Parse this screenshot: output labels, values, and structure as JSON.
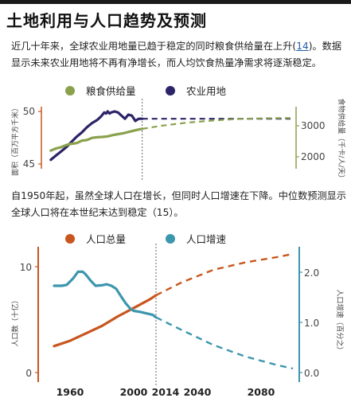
{
  "title": "土地利用与人口趋势及预测",
  "para1": {
    "text_before": "近几十年来，全球农业用地量已趋于稳定的同时粮食供给量在上升(",
    "ref": "14",
    "text_after": ")。数据显示未来农业用地将不再有净增长，而人均饮食热量净需求将逐渐稳定。"
  },
  "para2": {
    "text": "自1950年起，虽然全球人口在增长，但同时人口增速在下降。中位数预测显示全球人口将在本世纪末达到稳定（15）。"
  },
  "colors": {
    "food": "#8aa14c",
    "land": "#2c2468",
    "pop": "#c8561e",
    "rate": "#3c96ad",
    "axis_left": "#c8561e",
    "axis_right": "#3c96ad"
  },
  "chart_data": [
    {
      "type": "line",
      "legend": [
        {
          "name": "粮食供给量",
          "color": "#8aa14c"
        },
        {
          "name": "农业用地",
          "color": "#2c2468"
        }
      ],
      "ylabel_left": "面积（百万平方千米）",
      "ylabel_right": "食物供给量（千卡/人/天）",
      "left_ticks": [
        "50",
        "45"
      ],
      "right_ticks": [
        "3000",
        "2000"
      ],
      "left_range": [
        45,
        50
      ],
      "right_range": [
        1700,
        3400
      ],
      "divider_year": 2014,
      "series": [
        {
          "name": "农业用地",
          "axis": "left",
          "historical": {
            "x": [
              1961,
              1964,
              1967,
              1970,
              1973,
              1976,
              1979,
              1982,
              1985,
              1988,
              1990,
              1991,
              1992,
              1993,
              1994,
              1995,
              1996,
              1998,
              2000,
              2002,
              2004,
              2006,
              2008,
              2010,
              2012,
              2014
            ],
            "y": [
              45.4,
              45.8,
              46.2,
              46.6,
              47.1,
              47.6,
              48.0,
              48.5,
              48.9,
              49.2,
              49.5,
              49.7,
              49.9,
              49.8,
              50.0,
              49.8,
              49.9,
              50.0,
              49.9,
              49.6,
              49.3,
              49.7,
              49.6,
              49.1,
              49.3,
              49.3
            ]
          },
          "projection": {
            "x": [
              2014,
              2100
            ],
            "y": [
              49.3,
              49.3
            ]
          }
        },
        {
          "name": "粮食供给量",
          "axis": "right",
          "historical": {
            "x": [
              1961,
              1964,
              1967,
              1970,
              1973,
              1976,
              1979,
              1982,
              1985,
              1988,
              1991,
              1994,
              1997,
              2000,
              2003,
              2006,
              2009,
              2012,
              2014
            ],
            "y": [
              2200,
              2270,
              2310,
              2380,
              2420,
              2440,
              2520,
              2540,
              2610,
              2630,
              2640,
              2660,
              2700,
              2730,
              2760,
              2800,
              2840,
              2880,
              2900
            ]
          },
          "projection": {
            "x": [
              2014,
              2025,
              2040,
              2055,
              2070,
              2085,
              2100
            ],
            "y": [
              2900,
              3000,
              3100,
              3170,
              3220,
              3240,
              3250
            ]
          }
        }
      ]
    },
    {
      "type": "line",
      "legend": [
        {
          "name": "人口总量",
          "color": "#c8561e"
        },
        {
          "name": "人口增速",
          "color": "#3c96ad"
        }
      ],
      "ylabel_left": "人口数（十亿）",
      "ylabel_right": "人口增速（百分之）",
      "left_ticks": [
        "10",
        "0"
      ],
      "right_ticks": [
        "2.0",
        "1.0",
        "0.0"
      ],
      "left_range": [
        0,
        10
      ],
      "right_range": [
        0,
        2
      ],
      "x_ticks": [
        "1960",
        "2000",
        "2014",
        "2040",
        "2080"
      ],
      "divider_year": 2014,
      "series": [
        {
          "name": "人口总量",
          "axis": "left",
          "historical": {
            "x": [
              1950,
              1960,
              1970,
              1980,
              1990,
              2000,
              2010,
              2014
            ],
            "y": [
              2.5,
              3.0,
              3.7,
              4.4,
              5.3,
              6.1,
              6.9,
              7.3
            ]
          },
          "projection": {
            "x": [
              2014,
              2030,
              2050,
              2070,
              2090,
              2100
            ],
            "y": [
              7.3,
              8.5,
              9.7,
              10.4,
              10.9,
              11.2
            ]
          }
        },
        {
          "name": "人口增速",
          "axis": "right",
          "historical": {
            "x": [
              1950,
              1955,
              1958,
              1962,
              1965,
              1968,
              1970,
              1973,
              1976,
              1980,
              1983,
              1986,
              1989,
              1992,
              1995,
              1998,
              2000,
              2004,
              2008,
              2012,
              2014
            ],
            "y": [
              1.73,
              1.73,
              1.75,
              1.88,
              2.01,
              2.01,
              1.95,
              1.83,
              1.73,
              1.74,
              1.76,
              1.73,
              1.67,
              1.52,
              1.38,
              1.27,
              1.23,
              1.21,
              1.18,
              1.15,
              1.1
            ]
          },
          "projection": {
            "x": [
              2014,
              2030,
              2050,
              2070,
              2090,
              2100
            ],
            "y": [
              1.1,
              0.85,
              0.55,
              0.32,
              0.15,
              0.08
            ]
          }
        }
      ]
    }
  ]
}
